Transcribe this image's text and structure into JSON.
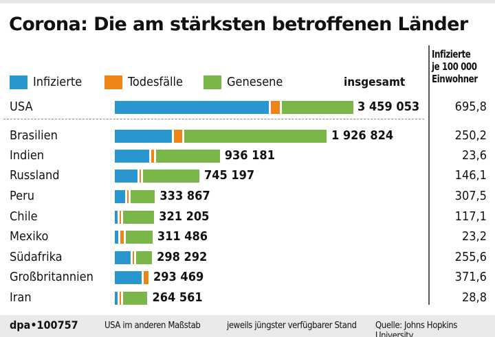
{
  "chart_data": {
    "type": "bar",
    "orientation": "horizontal",
    "stacked": true,
    "title": "Corona: Die am stärksten betroffenen Länder",
    "legend": [
      {
        "name": "Infizierte",
        "color": "#2a96d0"
      },
      {
        "name": "Todesfälle",
        "color": "#ee8418"
      },
      {
        "name": "Genesene",
        "color": "#7ab648"
      }
    ],
    "legend_placement": "top",
    "total_header": "insgesamt",
    "rate_header": [
      "Infizierte",
      "je 100 000",
      "Einwohner"
    ],
    "categories": [
      "USA",
      "Brasilien",
      "Indien",
      "Russland",
      "Peru",
      "Chile",
      "Mexiko",
      "Südafrika",
      "Großbritannien",
      "Iran"
    ],
    "series": [
      {
        "name": "Infizierte",
        "values": [
          2271053,
          530562,
          321000,
          208497,
          97638,
          24019,
          30159,
          147946,
          248469,
          24151
        ]
      },
      {
        "name": "Todesfälle",
        "values": [
          136000,
          74262,
          24300,
          11700,
          12229,
          7186,
          36327,
          4346,
          45000,
          13410
        ]
      },
      {
        "name": "Genesene",
        "values": [
          1052000,
          1322000,
          590881,
          525000,
          224000,
          290000,
          245000,
          146000,
          0,
          227000
        ]
      }
    ],
    "totals": [
      "3 459 053",
      "1 926 824",
      "936 181",
      "745 197",
      "333 867",
      "321 205",
      "311 486",
      "298 292",
      "293 469",
      "264 561"
    ],
    "rates": [
      "695,8",
      "250,2",
      "23,6",
      "146,1",
      "307,5",
      "117,1",
      "23,2",
      "255,6",
      "371,6",
      "28,8"
    ],
    "note_separate_scale": "USA im anderen Maßstab",
    "grid": false
  },
  "footer": {
    "agency": "dpa•100757",
    "scale_note": "USA im anderen Maßstab",
    "stand": "jeweils jüngster verfügbarer Stand",
    "source": "Quelle: Johns Hopkins University"
  }
}
